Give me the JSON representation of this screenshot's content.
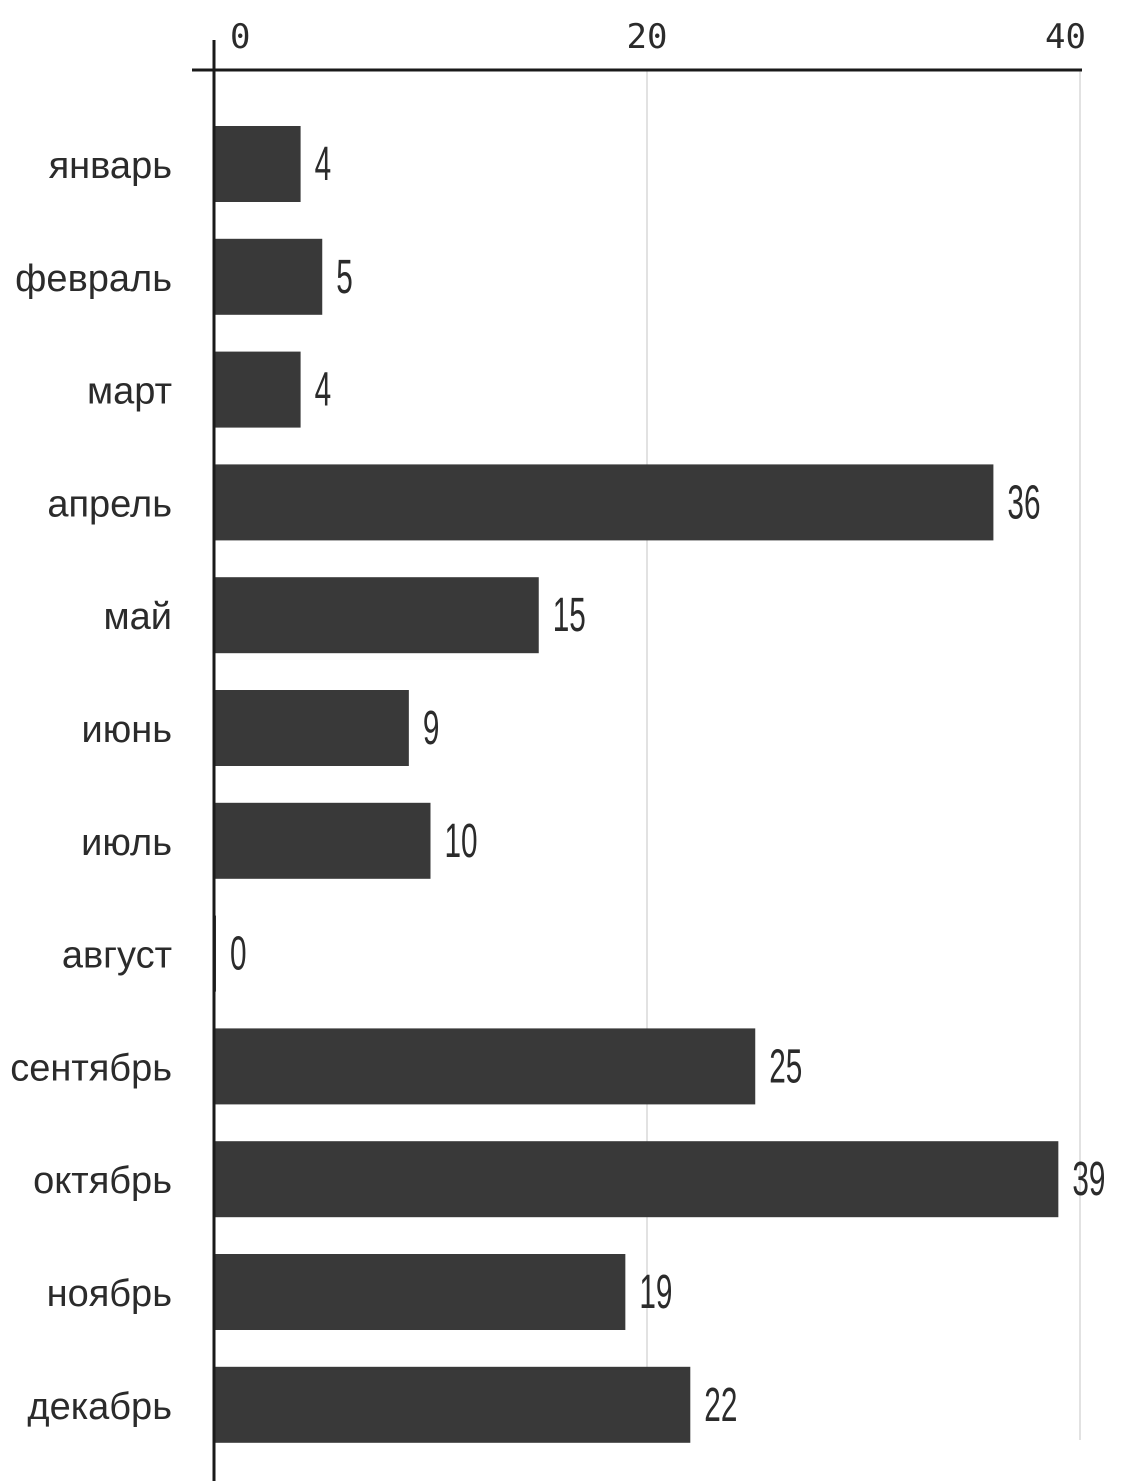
{
  "chart_data": {
    "type": "bar",
    "orientation": "horizontal",
    "title": "",
    "xlabel": "",
    "ylabel": "",
    "categories": [
      "январь",
      "февраль",
      "март",
      "апрель",
      "май",
      "июнь",
      "июль",
      "август",
      "сентябрь",
      "октябрь",
      "ноябрь",
      "декабрь"
    ],
    "values": [
      4,
      5,
      4,
      36,
      15,
      9,
      10,
      0,
      25,
      39,
      19,
      22
    ],
    "value_labels": [
      "4",
      "5",
      "4",
      "36",
      "15",
      "9",
      "10",
      "0",
      "25",
      "39",
      "19",
      "22"
    ],
    "xticks": [
      0,
      20,
      40
    ],
    "xtick_labels": [
      "0",
      "20",
      "40"
    ],
    "xaxis_position": "top",
    "grid": "vertical",
    "legend": "none",
    "colors": {
      "bar": "#393939",
      "axis": "#1a1a1a",
      "grid": "#d9d9d9",
      "text": "#2b2b2b"
    }
  }
}
